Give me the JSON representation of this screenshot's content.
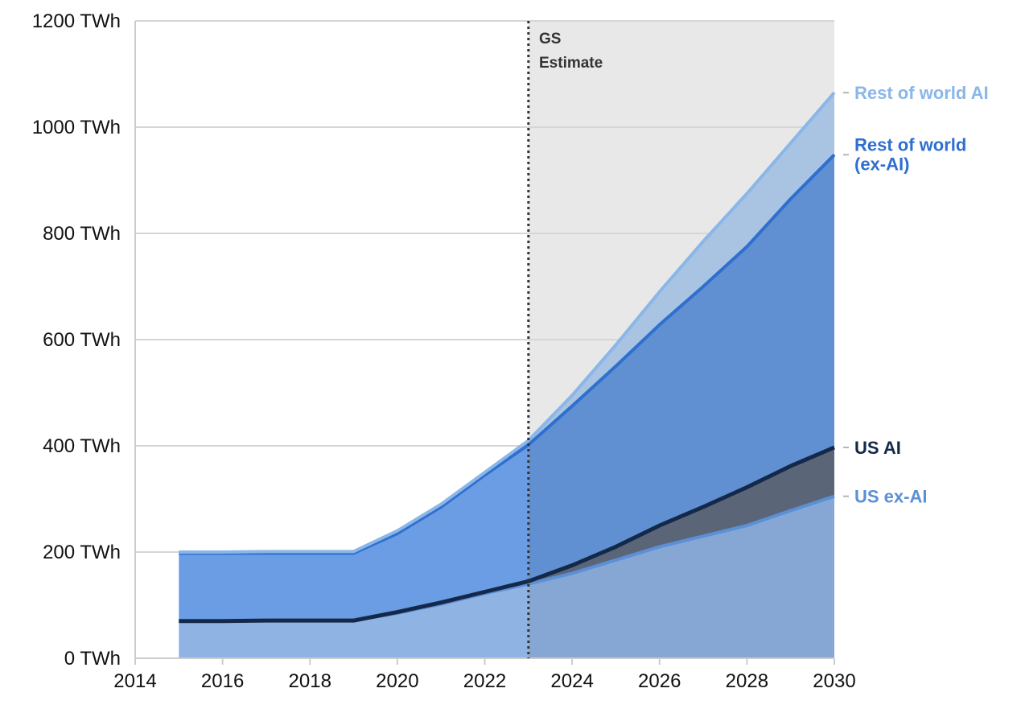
{
  "chart_data": {
    "type": "area",
    "title": "",
    "xlabel": "",
    "ylabel": "",
    "x": [
      2015,
      2016,
      2017,
      2018,
      2019,
      2020,
      2021,
      2022,
      2023,
      2024,
      2025,
      2026,
      2027,
      2028,
      2029,
      2030
    ],
    "xlim": [
      2014,
      2030
    ],
    "ylim": [
      0,
      1200
    ],
    "x_ticks": [
      2014,
      2016,
      2018,
      2020,
      2022,
      2024,
      2026,
      2028,
      2030
    ],
    "x_tick_labels": [
      "2014",
      "2016",
      "2018",
      "2020",
      "2022",
      "2024",
      "2026",
      "2028",
      "2030"
    ],
    "y_ticks": [
      0,
      200,
      400,
      600,
      800,
      1000,
      1200
    ],
    "y_tick_labels": [
      "0 TWh",
      "200 TWh",
      "400 TWh",
      "600 TWh",
      "800 TWh",
      "1000 TWh",
      "1200 TWh"
    ],
    "grid": true,
    "stacked": true,
    "series": [
      {
        "name": "US ex-AI",
        "color": "#5b8fd6",
        "fill": "#8fb3e3",
        "fill_forecast": "#86a7d4",
        "cumulative": [
          70,
          70,
          71,
          71,
          71,
          85,
          102,
          122,
          140,
          160,
          185,
          210,
          230,
          250,
          278,
          305
        ]
      },
      {
        "name": "US AI",
        "color": "#14294a",
        "fill": "#14294a",
        "fill_forecast": "#5a6678",
        "cumulative": [
          70,
          70,
          71,
          71,
          71,
          87,
          105,
          125,
          145,
          175,
          210,
          250,
          285,
          322,
          362,
          397
        ]
      },
      {
        "name": "Rest of world (ex-AI)",
        "color": "#2f6fcf",
        "fill": "#6a9de3",
        "fill_forecast": "#6090d2",
        "cumulative": [
          198,
          198,
          198,
          198,
          198,
          235,
          285,
          345,
          402,
          475,
          550,
          628,
          700,
          775,
          865,
          948
        ]
      },
      {
        "name": "Rest of world AI",
        "color": "#8ab6e8",
        "fill": "#a9c7ea",
        "fill_forecast": "#a9c4e3",
        "cumulative": [
          200,
          200,
          201,
          201,
          201,
          240,
          290,
          350,
          410,
          495,
          590,
          690,
          785,
          875,
          970,
          1065
        ]
      }
    ],
    "forecast_start": 2023,
    "annotation": {
      "line1": "GS",
      "line2": "Estimate"
    }
  }
}
